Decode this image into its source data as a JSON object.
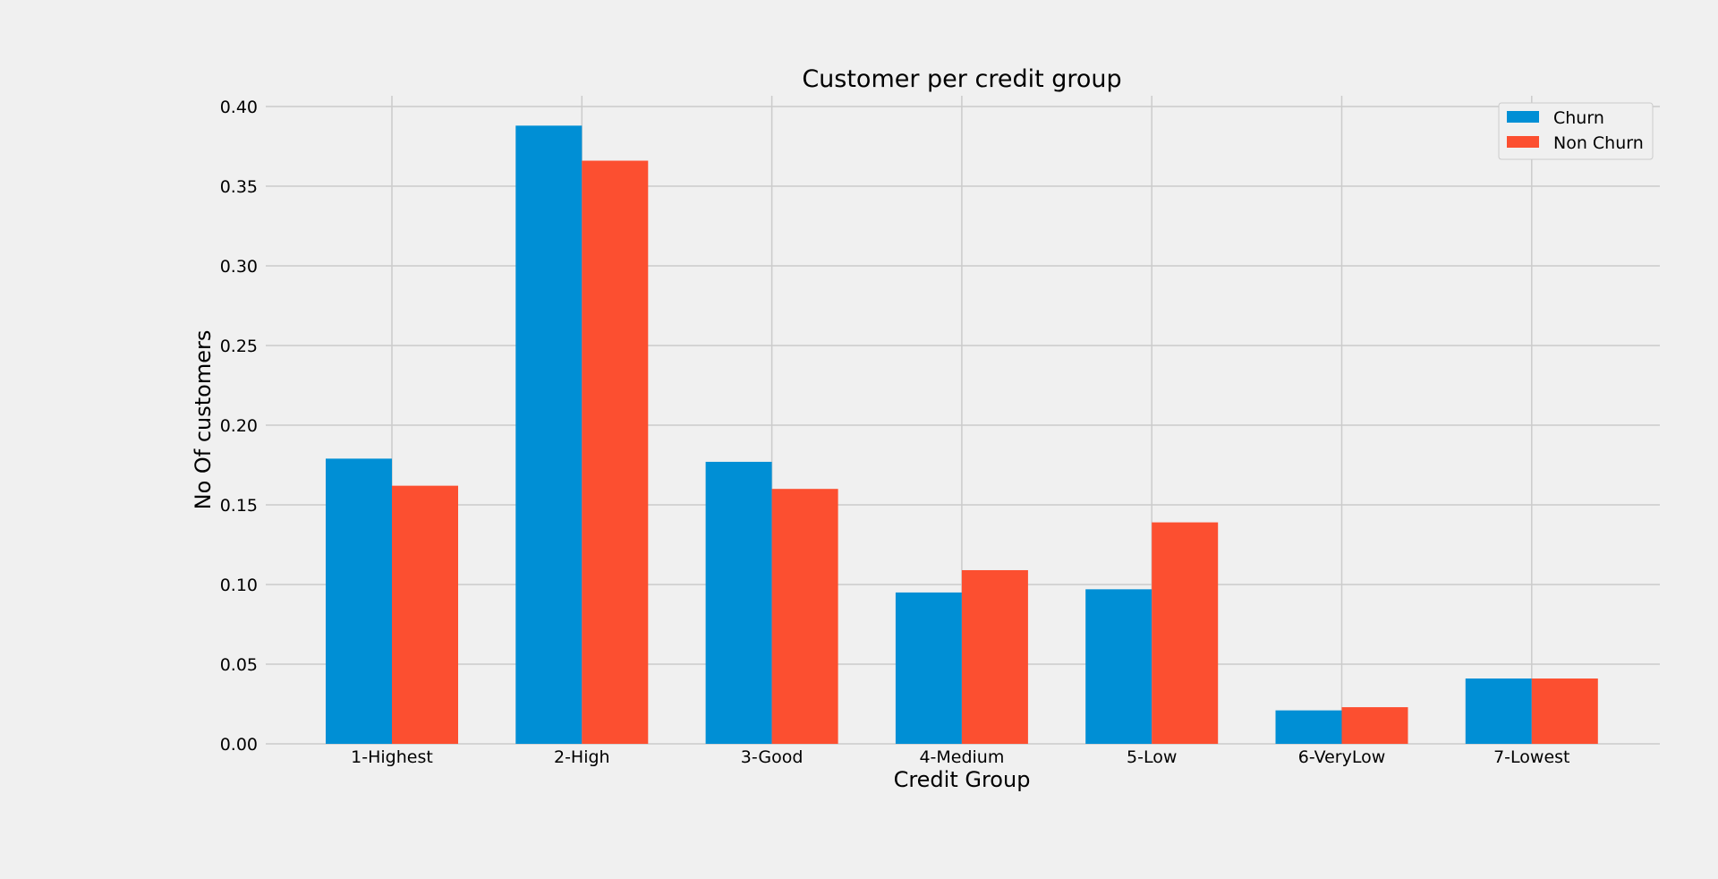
{
  "chart_data": {
    "type": "bar",
    "title": "Customer per credit group",
    "xlabel": "Credit Group",
    "ylabel": "No Of customers",
    "categories": [
      "1-Highest",
      "2-High",
      "3-Good",
      "4-Medium",
      "5-Low",
      "6-VeryLow",
      "7-Lowest"
    ],
    "series": [
      {
        "name": "Churn",
        "color": "#008fd5",
        "values": [
          0.179,
          0.388,
          0.177,
          0.095,
          0.097,
          0.021,
          0.041
        ]
      },
      {
        "name": "Non Churn",
        "color": "#fc4f30",
        "values": [
          0.162,
          0.366,
          0.16,
          0.109,
          0.139,
          0.023,
          0.041
        ]
      }
    ],
    "ylim": [
      0,
      0.4
    ],
    "yticks": [
      "0.00",
      "0.05",
      "0.10",
      "0.15",
      "0.20",
      "0.25",
      "0.30",
      "0.35",
      "0.40"
    ],
    "grid": true,
    "legend_position": "top-right"
  }
}
